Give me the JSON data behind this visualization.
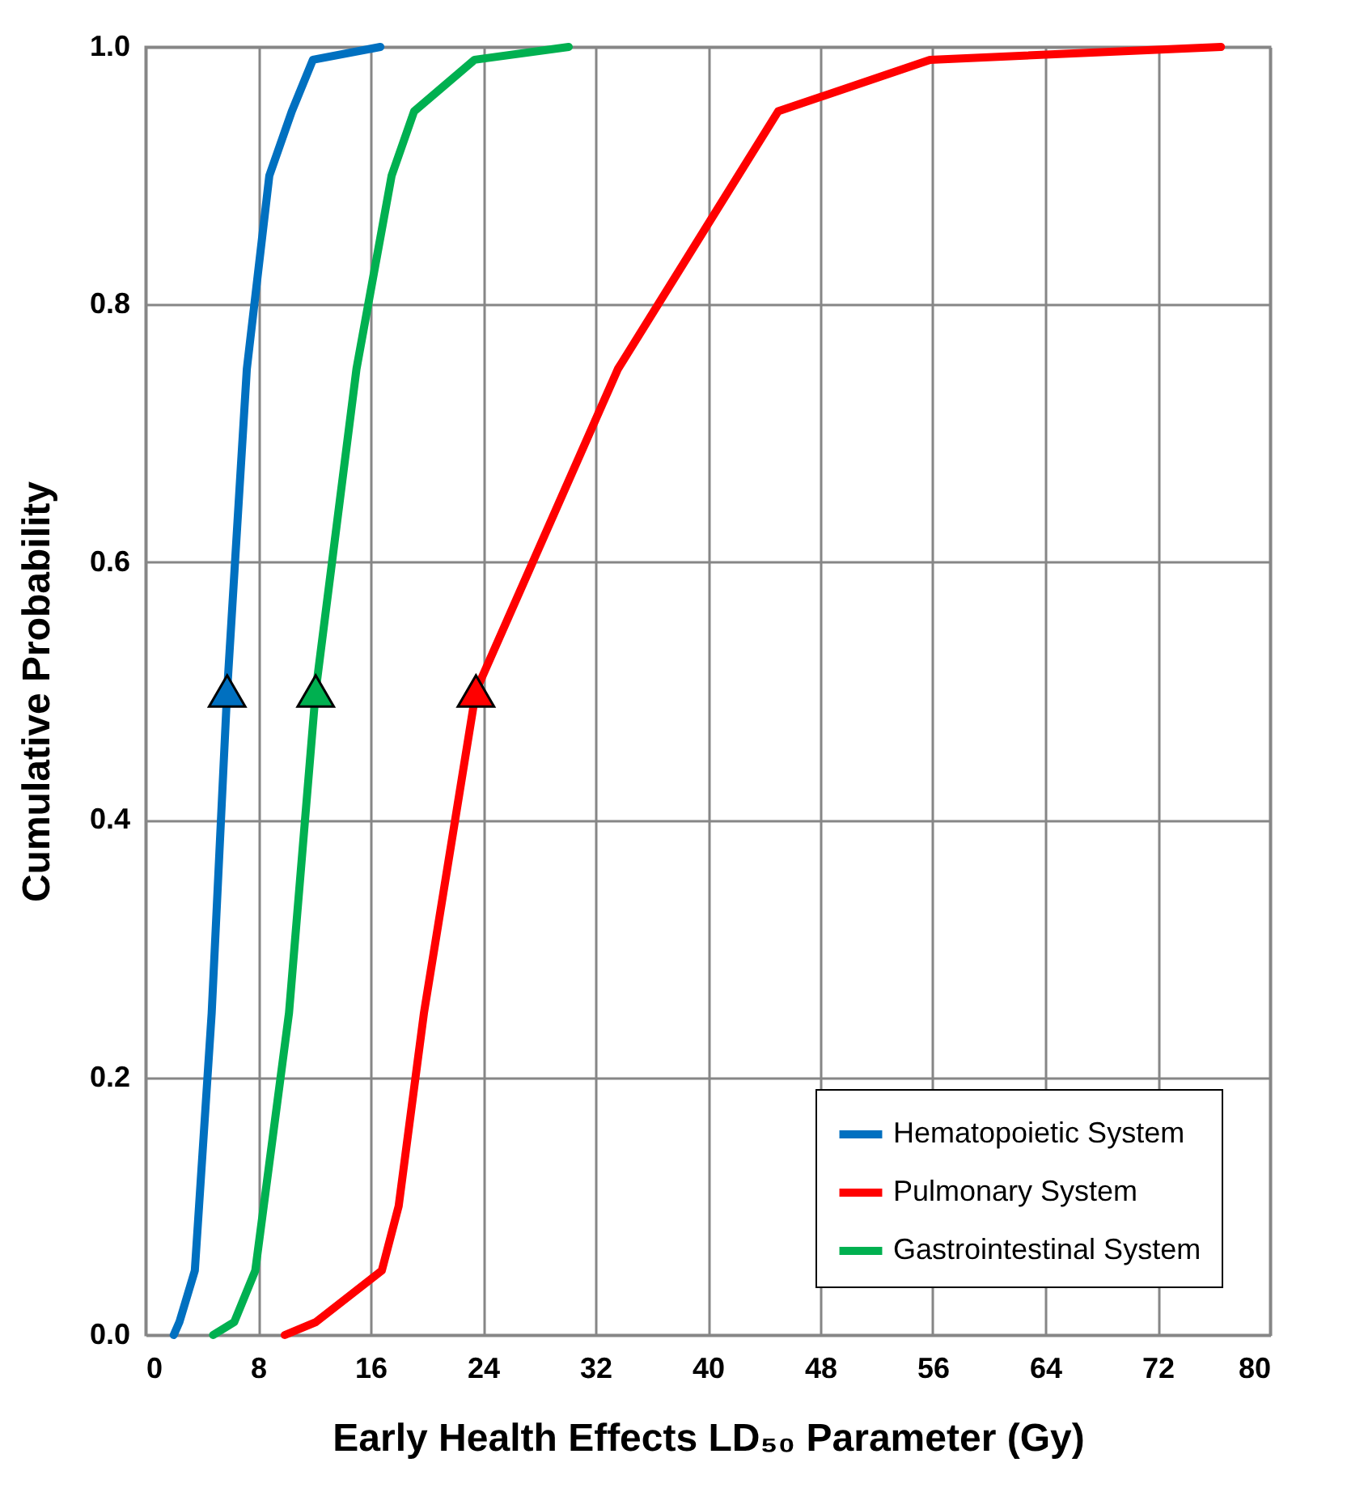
{
  "chart_data": {
    "type": "line",
    "xlabel": "Early Health Effects LD₅₀ Parameter (Gy)",
    "ylabel": "Cumulative Probability",
    "xlim": [
      0,
      80
    ],
    "xticks": [
      0,
      8,
      16,
      24,
      32,
      40,
      48,
      56,
      64,
      72,
      80
    ],
    "ylim": [
      0,
      1
    ],
    "yticks": [
      {
        "value": 0,
        "label": "0.0"
      },
      {
        "value": 0.2,
        "label": "0.2"
      },
      {
        "value": 0.4,
        "label": "0.4"
      },
      {
        "value": 0.6,
        "label": "0.6"
      },
      {
        "value": 0.8,
        "label": "0.8"
      },
      {
        "value": 1,
        "label": "1.0"
      }
    ],
    "grid": true,
    "legend": "bottom right",
    "marker": "none",
    "line_style": "solid",
    "series": [
      {
        "name": "Hematopoietic System",
        "color": "#0070c0",
        "x": [
          2.0,
          2.4,
          3.5,
          3.8,
          4.7,
          5.8,
          7.2,
          8.8,
          10.4,
          11.9,
          16.7
        ],
        "values": [
          0,
          0.01,
          0.05,
          0.1,
          0.25,
          0.5,
          0.75,
          0.9,
          0.95,
          0.99,
          1.0
        ]
      },
      {
        "name": "Pulmonary System",
        "color": "#ff0000",
        "x": [
          9.9,
          12.1,
          16.8,
          18.0,
          19.8,
          23.5,
          33.6,
          45.0,
          55.8,
          76.5
        ],
        "values": [
          0,
          0.01,
          0.05,
          0.1,
          0.25,
          0.5,
          0.75,
          0.95,
          0.99,
          1.0
        ]
      },
      {
        "name": "Gastrointestinal System",
        "color": "#00b050",
        "x": [
          4.8,
          6.3,
          7.8,
          8.4,
          10.2,
          12.1,
          15.0,
          17.5,
          19.1,
          23.4,
          30.1
        ],
        "values": [
          0,
          0.01,
          0.05,
          0.1,
          0.25,
          0.5,
          0.75,
          0.9,
          0.95,
          0.99,
          1.0
        ]
      },
      {
        "type": "scatter",
        "marker": "triangle",
        "color": "#0070c0",
        "x": [
          5.8
        ],
        "values": [
          0.5
        ]
      },
      {
        "type": "scatter",
        "marker": "triangle",
        "color": "#00b050",
        "x": [
          12.1
        ],
        "values": [
          0.5
        ]
      },
      {
        "type": "scatter",
        "marker": "triangle",
        "color": "#ff0000",
        "x": [
          23.5
        ],
        "values": [
          0.5
        ]
      }
    ]
  }
}
